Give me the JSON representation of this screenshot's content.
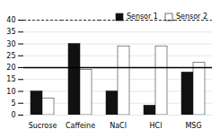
{
  "chart_data": {
    "type": "bar",
    "categories": [
      "Sucrose",
      "Caffeine",
      "NaCl",
      "HCl",
      "MSG"
    ],
    "series": [
      {
        "name": "Sensor 1",
        "color": "#111111",
        "values": [
          10,
          30,
          10,
          4,
          18
        ]
      },
      {
        "name": "Sensor 2",
        "color": "#ffffff",
        "values": [
          7,
          19,
          29,
          29,
          22
        ]
      }
    ],
    "ylim": [
      0,
      40
    ],
    "yticks": [
      0,
      5,
      10,
      15,
      20,
      25,
      30,
      35,
      40
    ],
    "grid": true,
    "legend": "upper right",
    "reference_lines": [
      {
        "y": 20,
        "line_style": "solid"
      },
      {
        "y": 40,
        "line_style": "dashed"
      }
    ]
  }
}
